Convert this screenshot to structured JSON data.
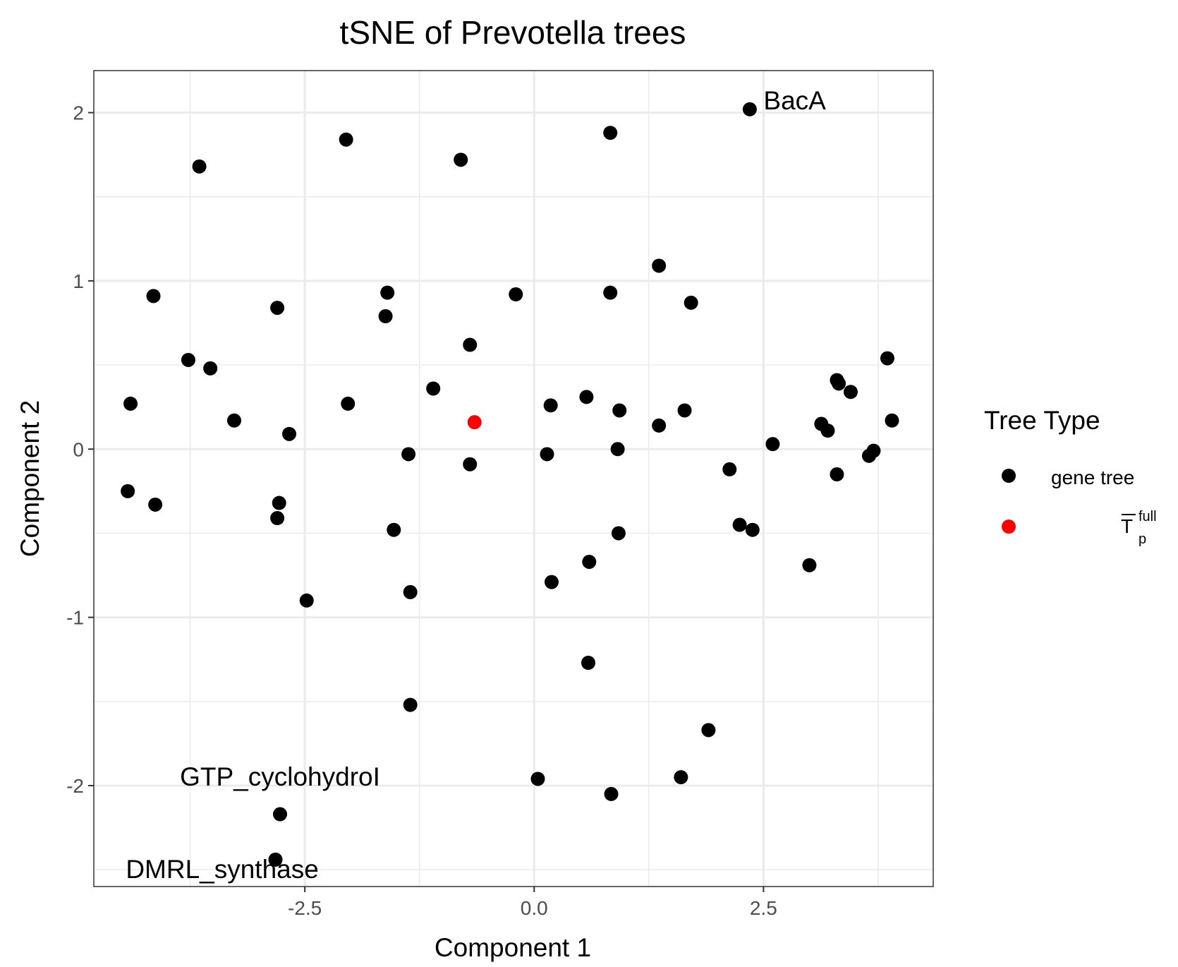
{
  "chart_data": {
    "type": "scatter",
    "title": "tSNE of Prevotella trees",
    "xlabel": "Component 1",
    "ylabel": "Component 2",
    "xlim": [
      -4.8,
      4.35
    ],
    "ylim": [
      -2.6,
      2.25
    ],
    "x_ticks": [
      -2.5,
      0.0,
      2.5
    ],
    "x_tick_labels": [
      "-2.5",
      "0.0",
      "2.5"
    ],
    "y_ticks": [
      -2,
      -1,
      0,
      1,
      2
    ],
    "y_tick_labels": [
      "-2",
      "-1",
      "0",
      "1",
      "2"
    ],
    "grid": true,
    "legend": {
      "title": "Tree Type",
      "position": "right",
      "entries": [
        {
          "label": "gene tree",
          "color": "#000000"
        },
        {
          "label": "T",
          "sup": "full",
          "sub": "p",
          "overline": true,
          "color": "#ff0000"
        }
      ]
    },
    "series": [
      {
        "name": "gene tree",
        "color": "#000000",
        "points": [
          [
            -3.65,
            1.68
          ],
          [
            -2.05,
            1.84
          ],
          [
            -0.8,
            1.72
          ],
          [
            0.83,
            1.88
          ],
          [
            2.35,
            2.02
          ],
          [
            -4.15,
            0.91
          ],
          [
            -2.8,
            0.84
          ],
          [
            -1.6,
            0.93
          ],
          [
            -1.62,
            0.79
          ],
          [
            -0.2,
            0.92
          ],
          [
            0.83,
            0.93
          ],
          [
            1.36,
            1.09
          ],
          [
            1.71,
            0.87
          ],
          [
            -0.7,
            0.62
          ],
          [
            -3.77,
            0.53
          ],
          [
            -3.53,
            0.48
          ],
          [
            -4.4,
            0.27
          ],
          [
            -3.27,
            0.17
          ],
          [
            -2.03,
            0.27
          ],
          [
            -1.1,
            0.36
          ],
          [
            0.18,
            0.26
          ],
          [
            0.57,
            0.31
          ],
          [
            0.93,
            0.23
          ],
          [
            1.36,
            0.14
          ],
          [
            1.64,
            0.23
          ],
          [
            3.3,
            0.41
          ],
          [
            3.32,
            0.39
          ],
          [
            3.45,
            0.34
          ],
          [
            3.85,
            0.54
          ],
          [
            3.9,
            0.17
          ],
          [
            3.13,
            0.15
          ],
          [
            3.2,
            0.11
          ],
          [
            2.6,
            0.03
          ],
          [
            3.7,
            -0.01
          ],
          [
            3.65,
            -0.04
          ],
          [
            -2.67,
            0.09
          ],
          [
            -1.37,
            -0.03
          ],
          [
            -0.7,
            -0.09
          ],
          [
            0.14,
            -0.03
          ],
          [
            0.91,
            0.0
          ],
          [
            2.13,
            -0.12
          ],
          [
            3.3,
            -0.15
          ],
          [
            -4.43,
            -0.25
          ],
          [
            -4.13,
            -0.33
          ],
          [
            -2.78,
            -0.32
          ],
          [
            -2.8,
            -0.41
          ],
          [
            -1.53,
            -0.48
          ],
          [
            0.92,
            -0.5
          ],
          [
            2.24,
            -0.45
          ],
          [
            2.38,
            -0.48
          ],
          [
            3.0,
            -0.69
          ],
          [
            0.6,
            -0.67
          ],
          [
            0.19,
            -0.79
          ],
          [
            -2.48,
            -0.9
          ],
          [
            -1.35,
            -0.85
          ],
          [
            0.59,
            -1.27
          ],
          [
            -1.35,
            -1.52
          ],
          [
            1.9,
            -1.67
          ],
          [
            1.6,
            -1.95
          ],
          [
            0.04,
            -1.96
          ],
          [
            0.84,
            -2.05
          ],
          [
            -2.77,
            -2.17
          ],
          [
            -2.82,
            -2.44
          ]
        ]
      },
      {
        "name": "Tpfull",
        "color": "#ff0000",
        "points": [
          [
            -0.65,
            0.16
          ]
        ]
      }
    ],
    "annotations": [
      {
        "text": "BacA",
        "x": 2.5,
        "y": 2.02,
        "anchor": "start"
      },
      {
        "text": "GTP_cyclohydroI",
        "x": -2.77,
        "y": -2.0,
        "anchor": "middle"
      },
      {
        "text": "DMRL_synthase",
        "x": -3.4,
        "y": -2.55,
        "anchor": "middle"
      }
    ]
  }
}
